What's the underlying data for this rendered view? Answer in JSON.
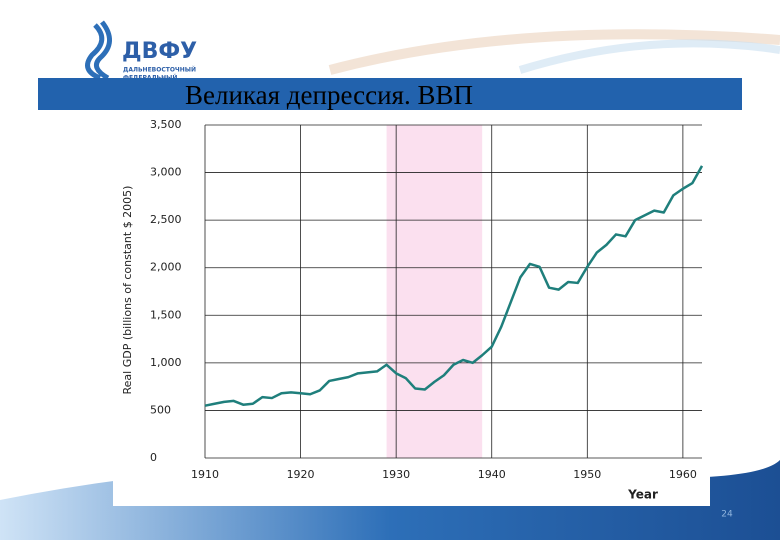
{
  "header": {
    "logo": "ДВФУ",
    "logo_line1": "ДАЛЬНЕВОСТОЧНЫЙ",
    "logo_line2": "ФЕДЕРАЛЬНЫЙ"
  },
  "slide_number": "24",
  "chart_data": {
    "type": "line",
    "title": "Великая депрессия. ВВП",
    "y_label": "Real GDP (billions of constant $ 2005)",
    "x_label": "Year",
    "x": [
      1910,
      1911,
      1912,
      1913,
      1914,
      1915,
      1916,
      1917,
      1918,
      1919,
      1920,
      1921,
      1922,
      1923,
      1924,
      1925,
      1926,
      1927,
      1928,
      1929,
      1930,
      1931,
      1932,
      1933,
      1934,
      1935,
      1936,
      1937,
      1938,
      1939,
      1940,
      1941,
      1942,
      1943,
      1944,
      1945,
      1946,
      1947,
      1948,
      1949,
      1950,
      1951,
      1952,
      1953,
      1954,
      1955,
      1956,
      1957,
      1958,
      1959,
      1960,
      1961,
      1962
    ],
    "series": [
      {
        "color": "#1f7f7c",
        "values": [
          550,
          570,
          590,
          600,
          560,
          570,
          640,
          630,
          680,
          690,
          680,
          670,
          710,
          810,
          830,
          850,
          890,
          900,
          910,
          980,
          890,
          840,
          730,
          720,
          800,
          870,
          980,
          1030,
          1000,
          1080,
          1170,
          1380,
          1640,
          1900,
          2040,
          2010,
          1790,
          1770,
          1850,
          1840,
          2010,
          2160,
          2240,
          2350,
          2330,
          2500,
          2550,
          2600,
          2580,
          2760,
          2830,
          2890,
          3070
        ]
      }
    ],
    "shade": [
      1929,
      1939
    ],
    "shade_color": "#fbe0ef",
    "xlim": [
      1910,
      1962
    ],
    "xticks": [
      1910,
      1920,
      1930,
      1940,
      1950,
      1960
    ],
    "ylim": [
      0,
      3500
    ],
    "yticks": [
      0,
      500,
      {
        "value": 1000,
        "label": "1,000"
      },
      {
        "value": 1500,
        "label": "1,500"
      },
      {
        "value": 2000,
        "label": "2,000"
      },
      {
        "value": 2500,
        "label": "2,500"
      },
      {
        "value": 3000,
        "label": "3,000"
      },
      {
        "value": 3500,
        "label": "3,500"
      }
    ],
    "grid": true
  }
}
